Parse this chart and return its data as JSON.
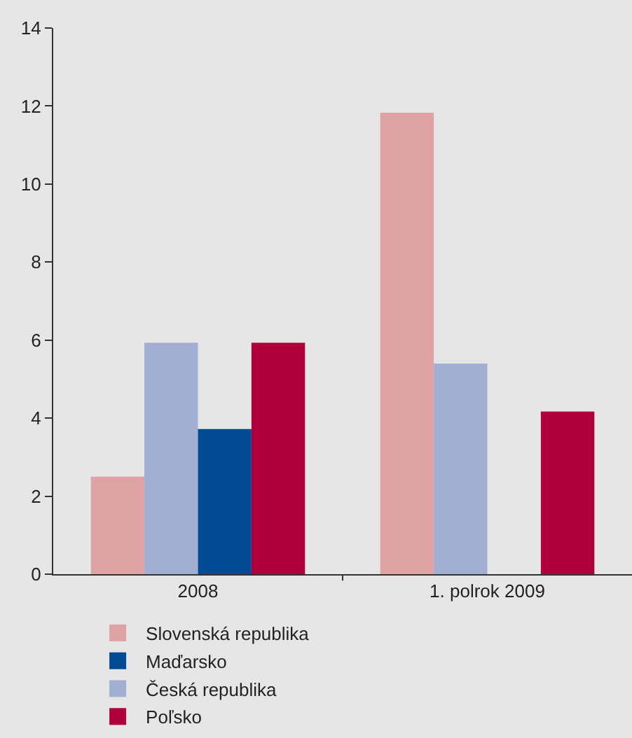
{
  "chart_data": {
    "type": "bar",
    "categories": [
      "2008",
      "1. polrok 2009"
    ],
    "series": [
      {
        "name": "Slovenská republika",
        "color": "#e0a3a5",
        "values": [
          2.5,
          11.83
        ]
      },
      {
        "name": "Česká republika",
        "color": "#a2aed2",
        "values": [
          5.93,
          5.4
        ]
      },
      {
        "name": "Maďarsko",
        "color": "#004b93",
        "values": [
          3.72,
          null
        ]
      },
      {
        "name": "Poľsko",
        "color": "#b0003c",
        "values": [
          5.93,
          4.17
        ]
      }
    ],
    "ylim": [
      0,
      14
    ],
    "yticks": [
      0,
      2,
      4,
      6,
      8,
      10,
      12,
      14
    ],
    "grid": false,
    "legend": "bottom"
  }
}
